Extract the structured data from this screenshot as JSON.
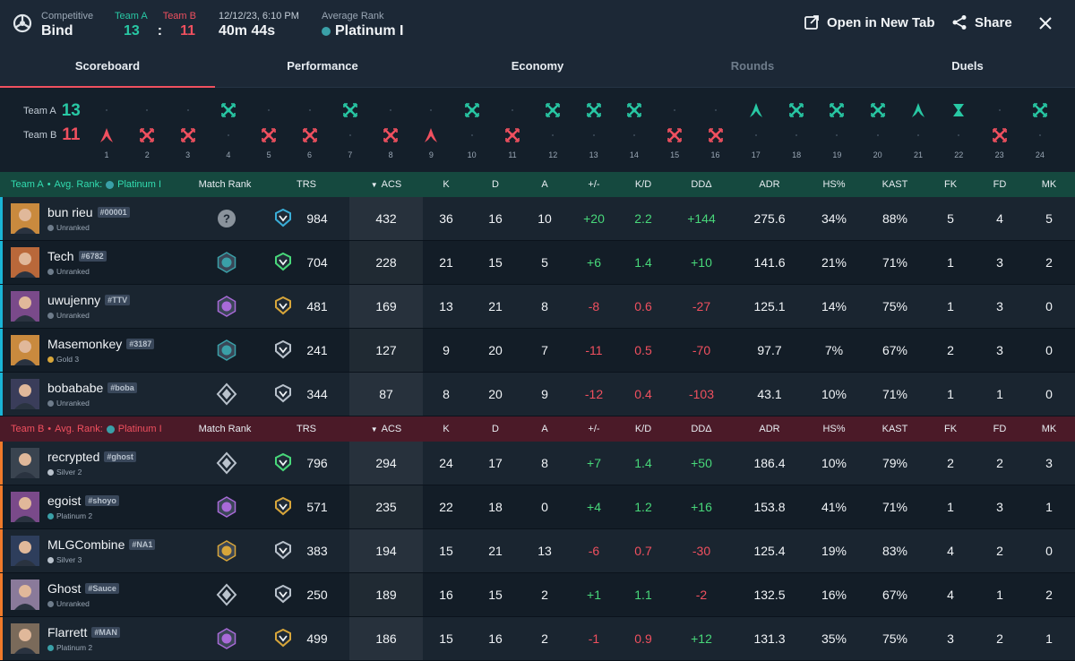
{
  "header": {
    "mode_label": "Competitive",
    "map_name": "Bind",
    "team_a_label": "Team A",
    "team_b_label": "Team B",
    "team_a_score": "13",
    "score_separator": ":",
    "team_b_score": "11",
    "datetime": "12/12/23, 6:10 PM",
    "duration": "40m 44s",
    "avg_rank_label": "Average Rank",
    "avg_rank": "Platinum I",
    "open_tab_label": "Open in New Tab",
    "share_label": "Share"
  },
  "tabs": [
    {
      "label": "Scoreboard",
      "state": "active"
    },
    {
      "label": "Performance",
      "state": "normal"
    },
    {
      "label": "Economy",
      "state": "normal"
    },
    {
      "label": "Rounds",
      "state": "disabled"
    },
    {
      "label": "Duels",
      "state": "normal"
    }
  ],
  "rounds_strip": {
    "team_a_label": "Team A",
    "team_a_score": "13",
    "team_b_label": "Team B",
    "team_b_score": "11",
    "rounds": [
      {
        "n": "1",
        "winner": "B",
        "type": "spike"
      },
      {
        "n": "2",
        "winner": "B",
        "type": "elim"
      },
      {
        "n": "3",
        "winner": "B",
        "type": "elim"
      },
      {
        "n": "4",
        "winner": "A",
        "type": "elim"
      },
      {
        "n": "5",
        "winner": "B",
        "type": "elim"
      },
      {
        "n": "6",
        "winner": "B",
        "type": "elim"
      },
      {
        "n": "7",
        "winner": "A",
        "type": "elim"
      },
      {
        "n": "8",
        "winner": "B",
        "type": "elim"
      },
      {
        "n": "9",
        "winner": "B",
        "type": "spike"
      },
      {
        "n": "10",
        "winner": "A",
        "type": "elim"
      },
      {
        "n": "11",
        "winner": "B",
        "type": "elim"
      },
      {
        "n": "12",
        "winner": "A",
        "type": "elim"
      },
      {
        "n": "13",
        "winner": "A",
        "type": "elim"
      },
      {
        "n": "14",
        "winner": "A",
        "type": "elim"
      },
      {
        "n": "15",
        "winner": "B",
        "type": "elim"
      },
      {
        "n": "16",
        "winner": "B",
        "type": "elim"
      },
      {
        "n": "17",
        "winner": "A",
        "type": "spike"
      },
      {
        "n": "18",
        "winner": "A",
        "type": "elim"
      },
      {
        "n": "19",
        "winner": "A",
        "type": "elim"
      },
      {
        "n": "20",
        "winner": "A",
        "type": "elim"
      },
      {
        "n": "21",
        "winner": "A",
        "type": "spike"
      },
      {
        "n": "22",
        "winner": "A",
        "type": "time"
      },
      {
        "n": "23",
        "winner": "B",
        "type": "elim"
      },
      {
        "n": "24",
        "winner": "A",
        "type": "elim"
      }
    ]
  },
  "columns": {
    "match_rank": "Match Rank",
    "trs": "TRS",
    "acs": "ACS",
    "k": "K",
    "d": "D",
    "a": "A",
    "pm": "+/-",
    "kd": "K/D",
    "dda": "DDΔ",
    "adr": "ADR",
    "hs": "HS%",
    "kast": "KAST",
    "fk": "FK",
    "fd": "FD",
    "mk": "MK"
  },
  "team_a": {
    "name": "Team A",
    "avg_rank_label": "Avg. Rank:",
    "avg_rank": "Platinum I",
    "players": [
      {
        "name": "bun rieu",
        "tag": "#00001",
        "rank": "Unranked",
        "rank_color": "#6e7c8b",
        "match_rank_icon": "unknown-rank-icon",
        "trs_icon": "trs-blue-icon",
        "trs": "984",
        "acs": "432",
        "k": "36",
        "d": "16",
        "a": "10",
        "pm": "+20",
        "kd": "2.2",
        "dda": "+144",
        "adr": "275.6",
        "hs": "34%",
        "kast": "88%",
        "fk": "5",
        "fd": "4",
        "mk": "5",
        "avatar_color": "#c98a3e"
      },
      {
        "name": "Tech",
        "tag": "#6782",
        "rank": "Unranked",
        "rank_color": "#6e7c8b",
        "match_rank_icon": "platinum-rank-icon",
        "trs_icon": "trs-green-icon",
        "trs": "704",
        "acs": "228",
        "k": "21",
        "d": "15",
        "a": "5",
        "pm": "+6",
        "kd": "1.4",
        "dda": "+10",
        "adr": "141.6",
        "hs": "21%",
        "kast": "71%",
        "fk": "1",
        "fd": "3",
        "mk": "2",
        "avatar_color": "#b9683a"
      },
      {
        "name": "uwujenny",
        "tag": "#TTV",
        "rank": "Unranked",
        "rank_color": "#6e7c8b",
        "match_rank_icon": "diamond-rank-icon",
        "trs_icon": "trs-gold-icon",
        "trs": "481",
        "acs": "169",
        "k": "13",
        "d": "21",
        "a": "8",
        "pm": "-8",
        "kd": "0.6",
        "dda": "-27",
        "adr": "125.1",
        "hs": "14%",
        "kast": "75%",
        "fk": "1",
        "fd": "3",
        "mk": "0",
        "avatar_color": "#7a4a8a"
      },
      {
        "name": "Masemonkey",
        "tag": "#3187",
        "rank": "Gold 3",
        "rank_color": "#d8a63a",
        "match_rank_icon": "platinum-rank-icon",
        "trs_icon": "trs-silver-icon",
        "trs": "241",
        "acs": "127",
        "k": "9",
        "d": "20",
        "a": "7",
        "pm": "-11",
        "kd": "0.5",
        "dda": "-70",
        "adr": "97.7",
        "hs": "7%",
        "kast": "67%",
        "fk": "2",
        "fd": "3",
        "mk": "0",
        "avatar_color": "#c98a3e"
      },
      {
        "name": "bobababe",
        "tag": "#boba",
        "rank": "Unranked",
        "rank_color": "#6e7c8b",
        "match_rank_icon": "silver-rank-icon",
        "trs_icon": "trs-silver-icon",
        "trs": "344",
        "acs": "87",
        "k": "8",
        "d": "20",
        "a": "9",
        "pm": "-12",
        "kd": "0.4",
        "dda": "-103",
        "adr": "43.1",
        "hs": "10%",
        "kast": "71%",
        "fk": "1",
        "fd": "1",
        "mk": "0",
        "avatar_color": "#3a3d5a"
      }
    ]
  },
  "team_b": {
    "name": "Team B",
    "avg_rank_label": "Avg. Rank:",
    "avg_rank": "Platinum I",
    "players": [
      {
        "name": "recrypted",
        "tag": "#ghost",
        "rank": "Silver 2",
        "rank_color": "#b9c2cc",
        "match_rank_icon": "silver-rank-icon",
        "trs_icon": "trs-green-icon",
        "trs": "796",
        "acs": "294",
        "k": "24",
        "d": "17",
        "a": "8",
        "pm": "+7",
        "kd": "1.4",
        "dda": "+50",
        "adr": "186.4",
        "hs": "10%",
        "kast": "79%",
        "fk": "2",
        "fd": "2",
        "mk": "3",
        "avatar_color": "#3a4450"
      },
      {
        "name": "egoist",
        "tag": "#shoyo",
        "rank": "Platinum 2",
        "rank_color": "#3aa0a8",
        "match_rank_icon": "diamond-rank-icon",
        "trs_icon": "trs-gold-icon",
        "trs": "571",
        "acs": "235",
        "k": "22",
        "d": "18",
        "a": "0",
        "pm": "+4",
        "kd": "1.2",
        "dda": "+16",
        "adr": "153.8",
        "hs": "41%",
        "kast": "71%",
        "fk": "1",
        "fd": "3",
        "mk": "1",
        "avatar_color": "#7a4a8a"
      },
      {
        "name": "MLGCombine",
        "tag": "#NA1",
        "rank": "Silver 3",
        "rank_color": "#b9c2cc",
        "match_rank_icon": "gold-rank-icon",
        "trs_icon": "trs-silver-icon",
        "trs": "383",
        "acs": "194",
        "k": "15",
        "d": "21",
        "a": "13",
        "pm": "-6",
        "kd": "0.7",
        "dda": "-30",
        "adr": "125.4",
        "hs": "19%",
        "kast": "83%",
        "fk": "4",
        "fd": "2",
        "mk": "0",
        "avatar_color": "#2e3e5c"
      },
      {
        "name": "Ghost",
        "tag": "#Sauce",
        "rank": "Unranked",
        "rank_color": "#6e7c8b",
        "match_rank_icon": "silver-rank-icon",
        "trs_icon": "trs-silver-icon",
        "trs": "250",
        "acs": "189",
        "k": "16",
        "d": "15",
        "a": "2",
        "pm": "+1",
        "kd": "1.1",
        "dda": "-2",
        "adr": "132.5",
        "hs": "16%",
        "kast": "67%",
        "fk": "4",
        "fd": "1",
        "mk": "2",
        "avatar_color": "#8a7a9a"
      },
      {
        "name": "Flarrett",
        "tag": "#MAN",
        "rank": "Platinum 2",
        "rank_color": "#3aa0a8",
        "match_rank_icon": "diamond-rank-icon",
        "trs_icon": "trs-gold-icon",
        "trs": "499",
        "acs": "186",
        "k": "15",
        "d": "16",
        "a": "2",
        "pm": "-1",
        "kd": "0.9",
        "dda": "+12",
        "adr": "131.3",
        "hs": "35%",
        "kast": "75%",
        "fk": "3",
        "fd": "2",
        "mk": "1",
        "avatar_color": "#7a6a5a"
      }
    ]
  },
  "colors": {
    "team_a": "#28c8a4",
    "team_b": "#f0505f",
    "positive": "#48d87a",
    "negative": "#f0505f"
  }
}
